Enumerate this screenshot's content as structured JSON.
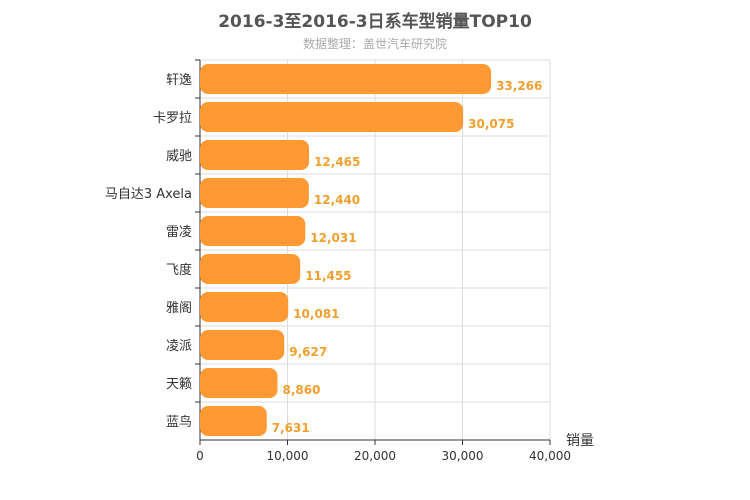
{
  "chart_data": {
    "type": "bar",
    "orientation": "horizontal",
    "title": "2016-3至2016-3日系车型销量TOP10",
    "subtitle": "数据整理：盖世汽车研究院",
    "categories": [
      "轩逸",
      "卡罗拉",
      "威驰",
      "马自达3 Axela",
      "雷凌",
      "飞度",
      "雅阁",
      "凌派",
      "天籁",
      "蓝鸟"
    ],
    "values": [
      33266,
      30075,
      12465,
      12440,
      12031,
      11455,
      10081,
      9627,
      8860,
      7631
    ],
    "value_labels": [
      "33,266",
      "30,075",
      "12,465",
      "12,440",
      "12,031",
      "11,455",
      "10,081",
      "9,627",
      "8,860",
      "7,631"
    ],
    "xlabel": "销量",
    "xlim": [
      0,
      40000
    ],
    "x_ticks": [
      "0",
      "10,000",
      "20,000",
      "30,000",
      "40,000"
    ],
    "x_tick_values": [
      0,
      10000,
      20000,
      30000,
      40000
    ],
    "grid": true,
    "colors": {
      "bar": "#ff9933",
      "label": "#f0a030",
      "grid": "#dddddd",
      "axis": "#333333"
    }
  }
}
